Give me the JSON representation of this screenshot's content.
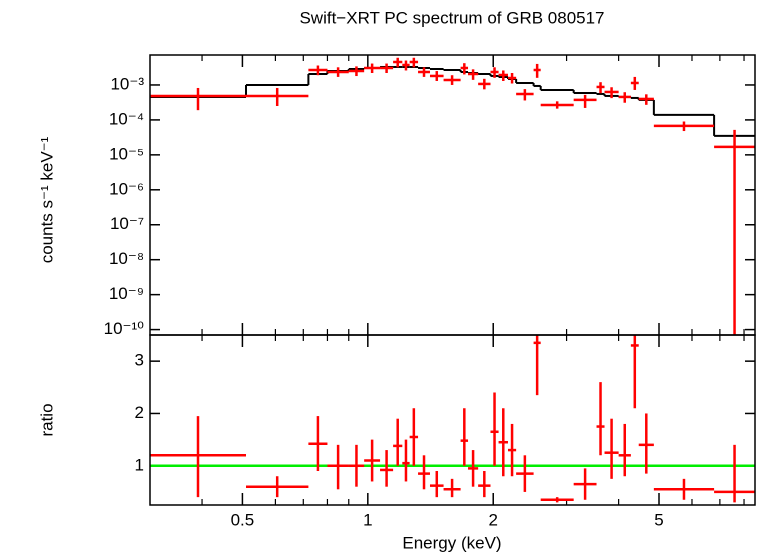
{
  "chart_data": [
    {
      "type": "errorbar",
      "title": "Swift−XRT PC spectrum of GRB 080517",
      "ylabel": "counts s⁻¹ keV⁻¹",
      "ylog": true,
      "ylim": [
        7e-11,
        0.0072
      ],
      "yticks": [
        {
          "value": 0.001,
          "label": "10⁻³"
        },
        {
          "value": 0.0001,
          "label": "10⁻⁴"
        },
        {
          "value": 1e-05,
          "label": "10⁻⁵"
        },
        {
          "value": 1e-06,
          "label": "10⁻⁶"
        },
        {
          "value": 1e-07,
          "label": "10⁻⁷"
        },
        {
          "value": 1e-08,
          "label": "10⁻⁸"
        },
        {
          "value": 1e-09,
          "label": "10⁻⁹"
        },
        {
          "value": 1e-10,
          "label": "10⁻¹⁰"
        }
      ],
      "bins": [
        0.3,
        0.51,
        0.72,
        0.8,
        0.9,
        0.98,
        1.07,
        1.15,
        1.21,
        1.26,
        1.32,
        1.41,
        1.52,
        1.67,
        1.74,
        1.84,
        1.97,
        2.06,
        2.17,
        2.27,
        2.5,
        2.6,
        3.12,
        3.54,
        3.7,
        4.0,
        4.28,
        4.47,
        4.86,
        6.78,
        8.5
      ],
      "data": {
        "color": "#ff0000",
        "values": [
          0.000485,
          0.000485,
          0.00268,
          0.00235,
          0.00251,
          0.00306,
          0.00306,
          0.00454,
          0.00373,
          0.00454,
          0.00235,
          0.00181,
          0.00139,
          0.00306,
          0.00206,
          0.00107,
          0.00235,
          0.00193,
          0.00158,
          0.000553,
          0.00268,
          0.000268,
          0.000373,
          0.000877,
          0.000631,
          0.000454,
          0.00114,
          0.000398,
          6.74e-05,
          1.69e-05
        ],
        "lower": [
          0.00019,
          0.00025,
          0.0019,
          0.0017,
          0.0018,
          0.0022,
          0.0022,
          0.0032,
          0.0026,
          0.0032,
          0.0017,
          0.0013,
          0.001,
          0.002,
          0.0014,
          0.00075,
          0.0016,
          0.0013,
          0.0011,
          0.00036,
          0.0016,
          0.00021,
          0.00022,
          0.00058,
          0.00042,
          0.00031,
          0.00072,
          0.00027,
          4.8e-05,
          7e-11
        ],
        "upper": [
          0.00082,
          0.00082,
          0.0036,
          0.0032,
          0.0034,
          0.0041,
          0.0041,
          0.006,
          0.005,
          0.006,
          0.0032,
          0.0025,
          0.0019,
          0.0042,
          0.0028,
          0.0015,
          0.0032,
          0.0026,
          0.0022,
          0.00076,
          0.004,
          0.00034,
          0.00052,
          0.0012,
          0.00086,
          0.00062,
          0.0017,
          0.00054,
          9e-05,
          5.2e-05
        ]
      },
      "model": {
        "color": "#000000",
        "values": [
          0.000454,
          0.001,
          0.00206,
          0.00251,
          0.00286,
          0.00306,
          0.00327,
          0.00327,
          0.00327,
          0.00327,
          0.00306,
          0.00286,
          0.00268,
          0.00235,
          0.0022,
          0.00206,
          0.00181,
          0.00169,
          0.00148,
          0.00114,
          0.000936,
          0.00072,
          0.00059,
          0.000553,
          0.000485,
          0.000454,
          0.000425,
          0.000373,
          0.000139,
          3.49e-05
        ]
      }
    },
    {
      "type": "errorbar",
      "xlabel": "Energy (keV)",
      "ylabel": "ratio",
      "xlog": true,
      "xlim": [
        0.3,
        8.5
      ],
      "xticks": [
        0.5,
        1,
        2,
        5
      ],
      "xminorticks": [
        0.4,
        0.6,
        0.7,
        0.8,
        0.9,
        3,
        4,
        6,
        7,
        8
      ],
      "ylim": [
        0.25,
        3.5
      ],
      "yticks": [
        1,
        2,
        3
      ],
      "reference_line": 1,
      "reference_color": "#00ee00",
      "data": {
        "color": "#ff0000",
        "values": [
          1.2,
          0.6,
          1.42,
          1.0,
          1.0,
          1.1,
          0.92,
          1.38,
          1.05,
          1.55,
          0.85,
          0.62,
          0.55,
          1.48,
          0.95,
          0.62,
          1.65,
          1.45,
          1.3,
          0.85,
          3.35,
          0.35,
          0.65,
          1.75,
          1.25,
          1.2,
          3.3,
          1.4,
          0.55,
          0.5
        ],
        "lower": [
          0.4,
          0.4,
          0.9,
          0.55,
          0.6,
          0.7,
          0.6,
          1.0,
          0.7,
          1.0,
          0.55,
          0.4,
          0.4,
          1.0,
          0.6,
          0.4,
          1.0,
          0.8,
          0.8,
          0.5,
          2.35,
          0.3,
          0.35,
          1.2,
          0.75,
          0.8,
          2.1,
          0.85,
          0.35,
          0.3
        ],
        "upper": [
          1.95,
          0.8,
          1.95,
          1.4,
          1.4,
          1.5,
          1.3,
          1.9,
          1.5,
          2.1,
          1.2,
          0.9,
          0.75,
          2.1,
          1.3,
          0.9,
          2.4,
          2.1,
          1.8,
          1.2,
          3.5,
          0.4,
          0.95,
          2.6,
          1.9,
          1.8,
          3.5,
          2.0,
          0.75,
          1.4
        ]
      }
    }
  ]
}
